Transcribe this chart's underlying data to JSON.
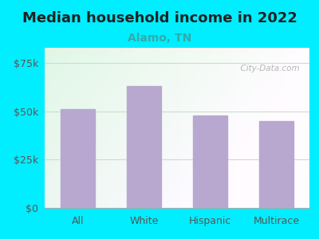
{
  "title": "Median household income in 2022",
  "subtitle": "Alamo, TN",
  "categories": [
    "All",
    "White",
    "Hispanic",
    "Multirace"
  ],
  "values": [
    51000,
    63000,
    48000,
    45000
  ],
  "bar_color": "#b8a8d0",
  "background_outer": "#00eeff",
  "ytick_labels": [
    "$0",
    "$25k",
    "$50k",
    "$75k"
  ],
  "ytick_values": [
    0,
    25000,
    50000,
    75000
  ],
  "ylim": [
    0,
    83000
  ],
  "title_fontsize": 13,
  "subtitle_fontsize": 10,
  "tick_fontsize": 9,
  "title_color": "#222222",
  "subtitle_color": "#33aaaa",
  "tick_color": "#555555",
  "watermark": "  City-Data.com",
  "watermark_color": "#aaaaaa",
  "grid_color": "#ccddcc",
  "bg_top_left": "#d8f0e0",
  "bg_bottom_right": "#f5fff5"
}
